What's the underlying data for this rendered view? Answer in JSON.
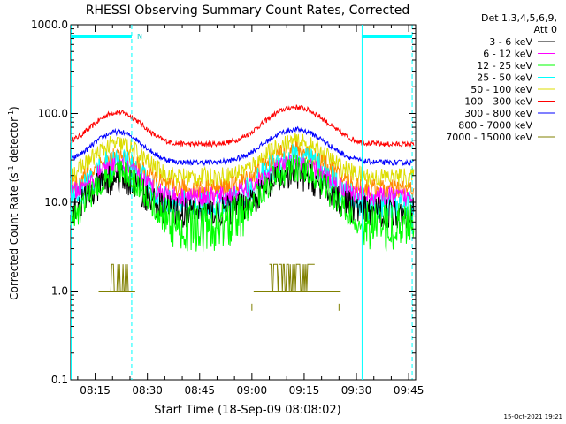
{
  "chart_data": {
    "type": "line",
    "title": "RHESSI Observing Summary Count Rates, Corrected",
    "xlabel": "Start Time (18-Sep-09 08:08:02)",
    "ylabel_main": "Corrected Count Rate (s",
    "ylabel_exp": "-1",
    "ylabel_tail": " detector",
    "ylabel_end": ")",
    "x_ticks": [
      "08:15",
      "08:30",
      "08:45",
      "09:00",
      "09:15",
      "09:30",
      "09:45"
    ],
    "x_tick_minutes": [
      15,
      30,
      45,
      60,
      75,
      90,
      105
    ],
    "xlim_minutes": [
      8.0,
      107.0
    ],
    "y_scale": "log",
    "ylim": [
      0.1,
      1000.0
    ],
    "y_ticks": [
      "0.1",
      "1.0",
      "10.0",
      "100.0",
      "1000.0"
    ],
    "y_tick_values": [
      0.1,
      1.0,
      10.0,
      100.0,
      1000.0
    ],
    "legend": {
      "placement": "right",
      "header_line1": "Det 1,3,4,5,6,9,",
      "header_line2": "Att 0"
    },
    "night_flag_label": "N",
    "night_intervals_minutes": [
      [
        8.0,
        25.5
      ],
      [
        91.5,
        106.0
      ]
    ],
    "saa_boundaries_minutes": [
      8.0,
      91.5
    ],
    "series": [
      {
        "name": "3 - 6 keV",
        "color": "#000000",
        "base": 7.6,
        "peak1": 18.5,
        "peak2": 20.0
      },
      {
        "name": "6 - 12 keV",
        "color": "#ff00ff",
        "base": 11.5,
        "peak1": 25.0,
        "peak2": 27.0
      },
      {
        "name": "12 - 25 keV",
        "color": "#00ff00",
        "base": 5.2,
        "peak1": 22.0,
        "peak2": 24.0
      },
      {
        "name": "25 - 50 keV",
        "color": "#00ffff",
        "base": 9.0,
        "peak1": 28.0,
        "peak2": 32.0
      },
      {
        "name": "50 - 100 keV",
        "color": "#dddd00",
        "base": 19.0,
        "peak1": 45.0,
        "peak2": 47.0
      },
      {
        "name": "100 - 300 keV",
        "color": "#ff0000",
        "base": 45.0,
        "peak1": 103.0,
        "peak2": 118.0
      },
      {
        "name": "300 - 800 keV",
        "color": "#0000ff",
        "base": 28.0,
        "peak1": 62.0,
        "peak2": 66.0
      },
      {
        "name": "800 - 7000 keV",
        "color": "#ff8800",
        "base": 14.0,
        "peak1": 32.0,
        "peak2": 38.0
      },
      {
        "name": "7000 - 15000 keV",
        "color": "#808000",
        "base": 1.0,
        "peak1": 2.0,
        "peak2": 2.0
      }
    ],
    "timestamp": "15-Oct-2021 19:21"
  }
}
